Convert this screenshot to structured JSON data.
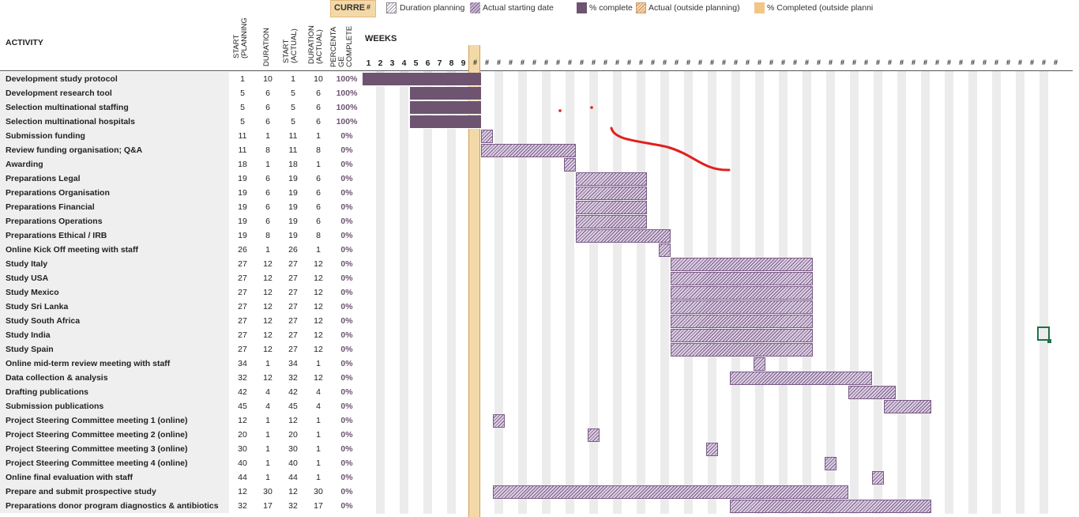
{
  "legend": {
    "current_label": "CURRE",
    "current_hash": "#",
    "duration_planning": "Duration planning",
    "actual_starting_date": "Actual starting date",
    "pct_complete": "% complete",
    "actual_outside": "Actual (outside planning)",
    "completed_outside": "% Completed (outside planni"
  },
  "headers": {
    "activity": "ACTIVITY",
    "start_planning": "START\n(PLANNING",
    "duration": "DURATION",
    "start_actual": "START\n(ACTUAL)",
    "duration_actual": "DURATION\n(ACTUAL)",
    "percentage_complete": "PERCENTA\nGE\nCOMPLETE",
    "weeks": "WEEKS"
  },
  "week_numbers": [
    "1",
    "2",
    "3",
    "4",
    "5",
    "6",
    "7",
    "8",
    "9"
  ],
  "week_overflow_glyph": "#",
  "colors": {
    "complete": "#6e5471",
    "actual_hatch": "#7a5c87",
    "current_period": "#f4d9a8",
    "row_label_bg": "#efefef",
    "annotation_red": "#e0201e"
  },
  "activities": [
    {
      "name": "Development study protocol",
      "start_plan": "1",
      "dur": "10",
      "start_act": "1",
      "dur_act": "10",
      "pct": "100%",
      "complete": 1
    },
    {
      "name": "Development research tool",
      "start_plan": "5",
      "dur": "6",
      "start_act": "5",
      "dur_act": "6",
      "pct": "100%",
      "complete": 1
    },
    {
      "name": "Selection multinational staffing",
      "start_plan": "5",
      "dur": "6",
      "start_act": "5",
      "dur_act": "6",
      "pct": "100%",
      "complete": 1
    },
    {
      "name": "Selection multinational hospitals",
      "start_plan": "5",
      "dur": "6",
      "start_act": "5",
      "dur_act": "6",
      "pct": "100%",
      "complete": 1
    },
    {
      "name": "Submission funding",
      "start_plan": "11",
      "dur": "1",
      "start_act": "11",
      "dur_act": "1",
      "pct": "0%",
      "complete": 0
    },
    {
      "name": "Review funding organisation; Q&A",
      "start_plan": "11",
      "dur": "8",
      "start_act": "11",
      "dur_act": "8",
      "pct": "0%",
      "complete": 0
    },
    {
      "name": "Awarding",
      "start_plan": "18",
      "dur": "1",
      "start_act": "18",
      "dur_act": "1",
      "pct": "0%",
      "complete": 0
    },
    {
      "name": "Preparations Legal",
      "start_plan": "19",
      "dur": "6",
      "start_act": "19",
      "dur_act": "6",
      "pct": "0%",
      "complete": 0
    },
    {
      "name": "Preparations Organisation",
      "start_plan": "19",
      "dur": "6",
      "start_act": "19",
      "dur_act": "6",
      "pct": "0%",
      "complete": 0
    },
    {
      "name": "Preparations Financial",
      "start_plan": "19",
      "dur": "6",
      "start_act": "19",
      "dur_act": "6",
      "pct": "0%",
      "complete": 0
    },
    {
      "name": "Preparations Operations",
      "start_plan": "19",
      "dur": "6",
      "start_act": "19",
      "dur_act": "6",
      "pct": "0%",
      "complete": 0
    },
    {
      "name": "Preparations Ethical / IRB",
      "start_plan": "19",
      "dur": "8",
      "start_act": "19",
      "dur_act": "8",
      "pct": "0%",
      "complete": 0
    },
    {
      "name": "Online Kick Off meeting with staff",
      "start_plan": "26",
      "dur": "1",
      "start_act": "26",
      "dur_act": "1",
      "pct": "0%",
      "complete": 0
    },
    {
      "name": "Study Italy",
      "start_plan": "27",
      "dur": "12",
      "start_act": "27",
      "dur_act": "12",
      "pct": "0%",
      "complete": 0
    },
    {
      "name": "Study USA",
      "start_plan": "27",
      "dur": "12",
      "start_act": "27",
      "dur_act": "12",
      "pct": "0%",
      "complete": 0
    },
    {
      "name": "Study Mexico",
      "start_plan": "27",
      "dur": "12",
      "start_act": "27",
      "dur_act": "12",
      "pct": "0%",
      "complete": 0
    },
    {
      "name": "Study Sri Lanka",
      "start_plan": "27",
      "dur": "12",
      "start_act": "27",
      "dur_act": "12",
      "pct": "0%",
      "complete": 0
    },
    {
      "name": "Study South Africa",
      "start_plan": "27",
      "dur": "12",
      "start_act": "27",
      "dur_act": "12",
      "pct": "0%",
      "complete": 0
    },
    {
      "name": "Study India",
      "start_plan": "27",
      "dur": "12",
      "start_act": "27",
      "dur_act": "12",
      "pct": "0%",
      "complete": 0
    },
    {
      "name": "Study Spain",
      "start_plan": "27",
      "dur": "12",
      "start_act": "27",
      "dur_act": "12",
      "pct": "0%",
      "complete": 0
    },
    {
      "name": "Online mid-term review meeting with staff",
      "start_plan": "34",
      "dur": "1",
      "start_act": "34",
      "dur_act": "1",
      "pct": "0%",
      "complete": 0
    },
    {
      "name": "Data collection & analysis",
      "start_plan": "32",
      "dur": "12",
      "start_act": "32",
      "dur_act": "12",
      "pct": "0%",
      "complete": 0
    },
    {
      "name": "Drafting publications",
      "start_plan": "42",
      "dur": "4",
      "start_act": "42",
      "dur_act": "4",
      "pct": "0%",
      "complete": 0
    },
    {
      "name": "Submission publications",
      "start_plan": "45",
      "dur": "4",
      "start_act": "45",
      "dur_act": "4",
      "pct": "0%",
      "complete": 0
    },
    {
      "name": "Project Steering Committee meeting 1 (online)",
      "start_plan": "12",
      "dur": "1",
      "start_act": "12",
      "dur_act": "1",
      "pct": "0%",
      "complete": 0
    },
    {
      "name": "Project Steering Committee meeting 2 (online)",
      "start_plan": "20",
      "dur": "1",
      "start_act": "20",
      "dur_act": "1",
      "pct": "0%",
      "complete": 0
    },
    {
      "name": "Project Steering Committee meeting 3 (online)",
      "start_plan": "30",
      "dur": "1",
      "start_act": "30",
      "dur_act": "1",
      "pct": "0%",
      "complete": 0
    },
    {
      "name": "Project Steering Committee meeting 4 (online)",
      "start_plan": "40",
      "dur": "1",
      "start_act": "40",
      "dur_act": "1",
      "pct": "0%",
      "complete": 0
    },
    {
      "name": "Online final evaluation with staff",
      "start_plan": "44",
      "dur": "1",
      "start_act": "44",
      "dur_act": "1",
      "pct": "0%",
      "complete": 0
    },
    {
      "name": "Prepare and submit prospective study",
      "start_plan": "12",
      "dur": "30",
      "start_act": "12",
      "dur_act": "30",
      "pct": "0%",
      "complete": 0
    },
    {
      "name": "Preparations donor program diagnostics & antibiotics",
      "start_plan": "32",
      "dur": "17",
      "start_act": "32",
      "dur_act": "17",
      "pct": "0%",
      "complete": 0
    }
  ]
}
